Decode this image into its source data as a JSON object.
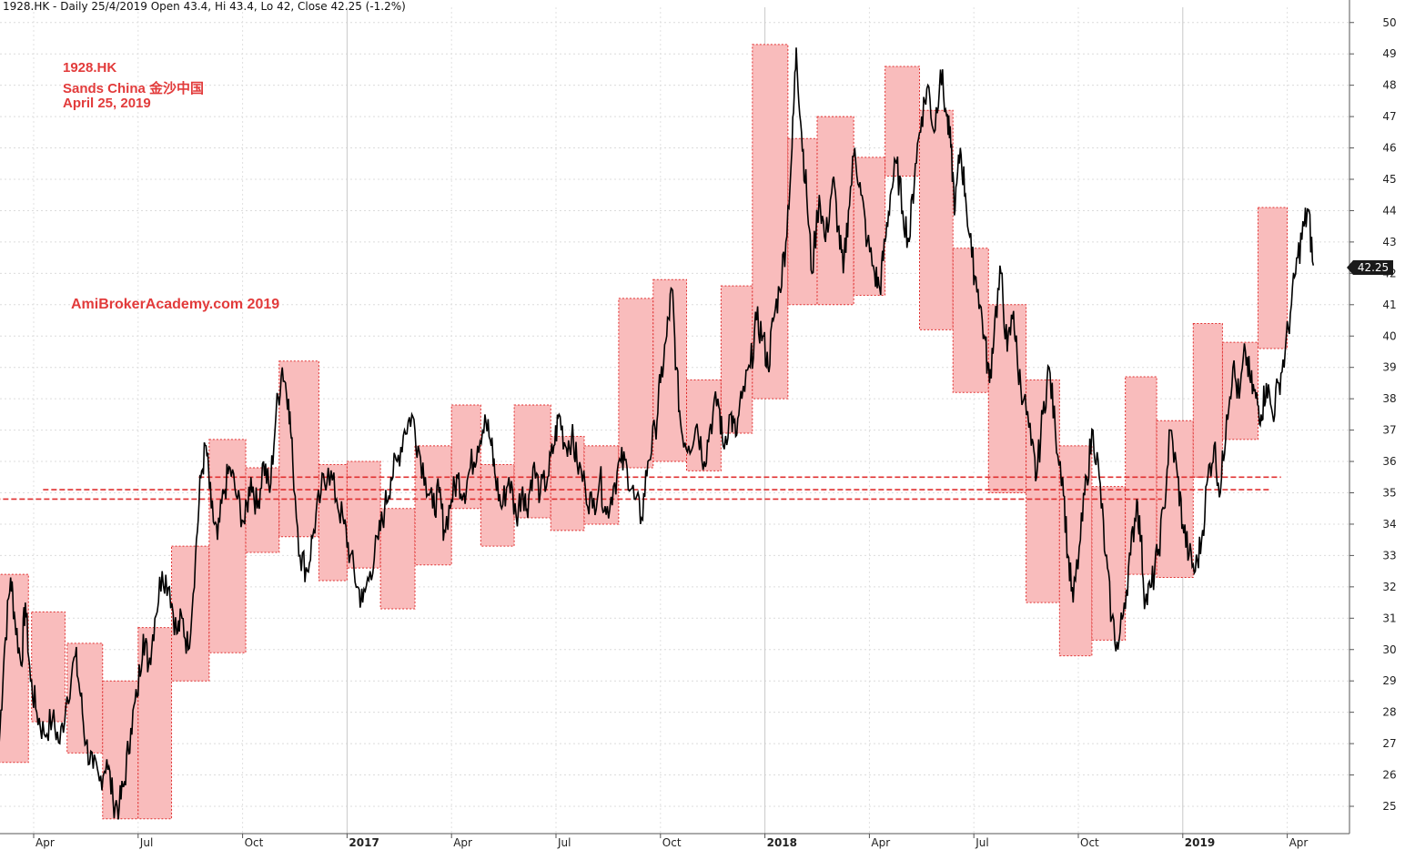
{
  "header": "1928.HK - Daily 25/4/2019 Open 43.4, Hi 43.4, Lo 42, Close 42.25 (-1.2%)",
  "annotation": {
    "ticker": "1928.HK",
    "name": "Sands China  金沙中国",
    "date": "April 25, 2019",
    "watermark": "AmiBrokerAcademy.com  2019"
  },
  "last_price_label": "42.25",
  "colors": {
    "box_fill": "#f9bcbc",
    "box_border": "#e03030",
    "line": "#e03030",
    "candle": "#000000",
    "annotation": "#e23b3b"
  },
  "chart_data": {
    "type": "line",
    "ylim": [
      24.3,
      50.4
    ],
    "y_ticks": [
      25,
      26,
      27,
      28,
      29,
      30,
      31,
      32,
      33,
      34,
      35,
      36,
      37,
      38,
      39,
      40,
      41,
      42,
      43,
      44,
      45,
      46,
      47,
      48,
      49,
      50
    ],
    "x_labels": [
      {
        "label": "Apr",
        "x": 0,
        "bold": false
      },
      {
        "label": "Jul",
        "x": 1,
        "bold": false
      },
      {
        "label": "Oct",
        "x": 2,
        "bold": false
      },
      {
        "label": "2017",
        "x": 3,
        "bold": true
      },
      {
        "label": "Apr",
        "x": 4,
        "bold": false
      },
      {
        "label": "Jul",
        "x": 5,
        "bold": false
      },
      {
        "label": "Oct",
        "x": 6,
        "bold": false
      },
      {
        "label": "2018",
        "x": 7,
        "bold": true
      },
      {
        "label": "Apr",
        "x": 8,
        "bold": false
      },
      {
        "label": "Jul",
        "x": 9,
        "bold": false
      },
      {
        "label": "Oct",
        "x": 10,
        "bold": false
      },
      {
        "label": "2019",
        "x": 11,
        "bold": true
      },
      {
        "label": "Apr",
        "x": 12,
        "bold": false
      }
    ],
    "price_path": [
      [
        -0.33,
        27.0
      ],
      [
        -0.28,
        30.0
      ],
      [
        -0.22,
        32.3
      ],
      [
        -0.18,
        31.0
      ],
      [
        -0.12,
        29.5
      ],
      [
        -0.08,
        31.5
      ],
      [
        -0.03,
        29.0
      ],
      [
        0.03,
        28.0
      ],
      [
        0.1,
        27.3
      ],
      [
        0.18,
        27.8
      ],
      [
        0.25,
        27.0
      ],
      [
        0.32,
        28.5
      ],
      [
        0.4,
        29.8
      ],
      [
        0.45,
        28.5
      ],
      [
        0.5,
        27.0
      ],
      [
        0.57,
        26.2
      ],
      [
        0.63,
        25.8
      ],
      [
        0.7,
        26.5
      ],
      [
        0.76,
        25.2
      ],
      [
        0.82,
        25.0
      ],
      [
        0.87,
        25.8
      ],
      [
        0.93,
        27.5
      ],
      [
        0.99,
        28.5
      ],
      [
        1.05,
        30.5
      ],
      [
        1.1,
        29.5
      ],
      [
        1.16,
        31.0
      ],
      [
        1.23,
        32.5
      ],
      [
        1.3,
        32.0
      ],
      [
        1.37,
        30.5
      ],
      [
        1.42,
        31.0
      ],
      [
        1.48,
        30.0
      ],
      [
        1.55,
        33.0
      ],
      [
        1.6,
        35.5
      ],
      [
        1.65,
        36.5
      ],
      [
        1.7,
        34.5
      ],
      [
        1.76,
        33.5
      ],
      [
        1.82,
        35.0
      ],
      [
        1.88,
        35.8
      ],
      [
        1.95,
        34.8
      ],
      [
        2.02,
        34.0
      ],
      [
        2.08,
        35.5
      ],
      [
        2.14,
        34.5
      ],
      [
        2.2,
        36.0
      ],
      [
        2.26,
        35.0
      ],
      [
        2.32,
        37.5
      ],
      [
        2.38,
        39.0
      ],
      [
        2.44,
        38.0
      ],
      [
        2.48,
        36.0
      ],
      [
        2.55,
        33.0
      ],
      [
        2.62,
        32.5
      ],
      [
        2.68,
        33.8
      ],
      [
        2.75,
        35.0
      ],
      [
        2.82,
        35.8
      ],
      [
        2.9,
        34.8
      ],
      [
        2.97,
        34.0
      ],
      [
        3.03,
        33.0
      ],
      [
        3.1,
        32.0
      ],
      [
        3.15,
        31.5
      ],
      [
        3.22,
        32.5
      ],
      [
        3.3,
        33.5
      ],
      [
        3.36,
        34.5
      ],
      [
        3.42,
        35.5
      ],
      [
        3.48,
        36.0
      ],
      [
        3.55,
        37.0
      ],
      [
        3.62,
        37.5
      ],
      [
        3.68,
        36.5
      ],
      [
        3.75,
        35.5
      ],
      [
        3.82,
        34.5
      ],
      [
        3.88,
        35.0
      ],
      [
        3.93,
        33.8
      ],
      [
        4.0,
        34.8
      ],
      [
        4.06,
        35.5
      ],
      [
        4.12,
        35.0
      ],
      [
        4.18,
        35.8
      ],
      [
        4.25,
        36.5
      ],
      [
        4.32,
        37.5
      ],
      [
        4.38,
        36.5
      ],
      [
        4.42,
        35.5
      ],
      [
        4.48,
        34.5
      ],
      [
        4.55,
        35.5
      ],
      [
        4.62,
        34.2
      ],
      [
        4.68,
        35.2
      ],
      [
        4.72,
        34.5
      ],
      [
        4.78,
        35.8
      ],
      [
        4.85,
        35.0
      ],
      [
        4.92,
        35.5
      ],
      [
        4.98,
        36.5
      ],
      [
        5.03,
        37.5
      ],
      [
        5.09,
        36.5
      ],
      [
        5.15,
        36.8
      ],
      [
        5.2,
        36.0
      ],
      [
        5.28,
        35.2
      ],
      [
        5.35,
        34.5
      ],
      [
        5.42,
        35.5
      ],
      [
        5.48,
        34.3
      ],
      [
        5.55,
        35.2
      ],
      [
        5.62,
        36.0
      ],
      [
        5.68,
        35.8
      ],
      [
        5.75,
        34.8
      ],
      [
        5.82,
        34.2
      ],
      [
        5.88,
        36.0
      ],
      [
        5.95,
        37.0
      ],
      [
        6.0,
        38.5
      ],
      [
        6.06,
        40.0
      ],
      [
        6.11,
        41.5
      ],
      [
        6.15,
        39.0
      ],
      [
        6.2,
        37.0
      ],
      [
        6.27,
        36.5
      ],
      [
        6.35,
        37.2
      ],
      [
        6.42,
        36.0
      ],
      [
        6.48,
        37.2
      ],
      [
        6.55,
        38.0
      ],
      [
        6.6,
        36.5
      ],
      [
        6.67,
        37.5
      ],
      [
        6.72,
        36.8
      ],
      [
        6.78,
        38.0
      ],
      [
        6.86,
        39.0
      ],
      [
        6.92,
        40.5
      ],
      [
        6.98,
        40.0
      ],
      [
        7.03,
        39.0
      ],
      [
        7.08,
        40.5
      ],
      [
        7.14,
        41.5
      ],
      [
        7.2,
        43.0
      ],
      [
        7.26,
        46.0
      ],
      [
        7.3,
        49.2
      ],
      [
        7.35,
        46.5
      ],
      [
        7.4,
        44.5
      ],
      [
        7.45,
        42.0
      ],
      [
        7.52,
        44.5
      ],
      [
        7.58,
        43.0
      ],
      [
        7.65,
        45.0
      ],
      [
        7.7,
        43.5
      ],
      [
        7.75,
        42.0
      ],
      [
        7.8,
        44.0
      ],
      [
        7.86,
        46.0
      ],
      [
        7.92,
        44.5
      ],
      [
        7.98,
        43.0
      ],
      [
        8.05,
        42.0
      ],
      [
        8.1,
        41.5
      ],
      [
        8.15,
        43.0
      ],
      [
        8.2,
        44.5
      ],
      [
        8.26,
        45.5
      ],
      [
        8.32,
        44.0
      ],
      [
        8.38,
        43.0
      ],
      [
        8.44,
        45.5
      ],
      [
        8.5,
        47.0
      ],
      [
        8.56,
        48.0
      ],
      [
        8.62,
        46.5
      ],
      [
        8.68,
        48.5
      ],
      [
        8.74,
        47.0
      ],
      [
        8.78,
        46.0
      ],
      [
        8.82,
        44.0
      ],
      [
        8.87,
        46.0
      ],
      [
        8.92,
        44.5
      ],
      [
        8.98,
        42.5
      ],
      [
        9.04,
        41.5
      ],
      [
        9.1,
        40.0
      ],
      [
        9.15,
        38.5
      ],
      [
        9.2,
        40.5
      ],
      [
        9.26,
        42.0
      ],
      [
        9.32,
        39.5
      ],
      [
        9.38,
        40.8
      ],
      [
        9.42,
        39.0
      ],
      [
        9.48,
        38.0
      ],
      [
        9.55,
        36.5
      ],
      [
        9.6,
        35.5
      ],
      [
        9.66,
        37.5
      ],
      [
        9.72,
        39.0
      ],
      [
        9.78,
        37.0
      ],
      [
        9.85,
        35.5
      ],
      [
        9.9,
        33.0
      ],
      [
        9.95,
        31.5
      ],
      [
        10.02,
        33.5
      ],
      [
        10.08,
        35.5
      ],
      [
        10.14,
        37.0
      ],
      [
        10.2,
        35.5
      ],
      [
        10.26,
        33.0
      ],
      [
        10.32,
        31.0
      ],
      [
        10.38,
        30.0
      ],
      [
        10.44,
        31.5
      ],
      [
        10.5,
        33.0
      ],
      [
        10.56,
        34.8
      ],
      [
        10.6,
        33.5
      ],
      [
        10.64,
        31.5
      ],
      [
        10.7,
        32.0
      ],
      [
        10.76,
        33.0
      ],
      [
        10.82,
        34.5
      ],
      [
        10.88,
        37.0
      ],
      [
        10.95,
        35.5
      ],
      [
        11.0,
        34.0
      ],
      [
        11.06,
        33.0
      ],
      [
        11.12,
        32.5
      ],
      [
        11.18,
        33.5
      ],
      [
        11.24,
        35.5
      ],
      [
        11.3,
        36.5
      ],
      [
        11.36,
        35.0
      ],
      [
        11.42,
        37.5
      ],
      [
        11.48,
        39.0
      ],
      [
        11.54,
        38.0
      ],
      [
        11.6,
        39.5
      ],
      [
        11.65,
        38.5
      ],
      [
        11.7,
        38.0
      ],
      [
        11.75,
        37.5
      ],
      [
        11.8,
        38.5
      ],
      [
        11.86,
        37.5
      ],
      [
        11.92,
        38.5
      ],
      [
        11.98,
        39.5
      ],
      [
        12.04,
        41.0
      ],
      [
        12.1,
        42.5
      ],
      [
        12.16,
        43.5
      ],
      [
        12.2,
        44.0
      ],
      [
        12.25,
        42.25
      ]
    ],
    "boxes": [
      [
        -0.35,
        -0.05,
        26.4,
        32.4
      ],
      [
        -0.02,
        0.3,
        27.7,
        31.2
      ],
      [
        0.32,
        0.66,
        26.7,
        30.2
      ],
      [
        0.66,
        1.0,
        24.6,
        29.0
      ],
      [
        1.0,
        1.32,
        24.6,
        30.7
      ],
      [
        1.32,
        1.68,
        29.0,
        33.3
      ],
      [
        1.68,
        2.03,
        29.9,
        36.7
      ],
      [
        2.03,
        2.35,
        33.1,
        35.8
      ],
      [
        2.35,
        2.73,
        33.6,
        39.2
      ],
      [
        2.73,
        3.0,
        32.2,
        35.9
      ],
      [
        3.0,
        3.32,
        32.6,
        36.0
      ],
      [
        3.32,
        3.65,
        31.3,
        34.5
      ],
      [
        3.65,
        4.0,
        32.7,
        36.5
      ],
      [
        4.0,
        4.28,
        34.5,
        37.8
      ],
      [
        4.28,
        4.6,
        33.3,
        35.9
      ],
      [
        4.6,
        4.95,
        34.2,
        37.8
      ],
      [
        4.95,
        5.27,
        33.8,
        36.8
      ],
      [
        5.27,
        5.6,
        34.0,
        36.5
      ],
      [
        5.6,
        5.93,
        35.8,
        41.2
      ],
      [
        5.93,
        6.25,
        36.0,
        41.8
      ],
      [
        6.25,
        6.58,
        35.7,
        38.6
      ],
      [
        6.58,
        6.88,
        36.9,
        41.6
      ],
      [
        6.88,
        7.22,
        38.0,
        49.3
      ],
      [
        7.22,
        7.5,
        41.0,
        46.3
      ],
      [
        7.5,
        7.85,
        41.0,
        47.0
      ],
      [
        7.85,
        8.15,
        41.3,
        45.7
      ],
      [
        8.15,
        8.48,
        45.1,
        48.6
      ],
      [
        8.48,
        8.8,
        40.2,
        47.2
      ],
      [
        8.8,
        9.14,
        38.2,
        42.8
      ],
      [
        9.14,
        9.5,
        35.0,
        41.0
      ],
      [
        9.5,
        9.82,
        31.5,
        38.6
      ],
      [
        9.82,
        10.13,
        29.8,
        36.5
      ],
      [
        10.13,
        10.45,
        30.3,
        35.2
      ],
      [
        10.45,
        10.75,
        32.4,
        38.7
      ],
      [
        10.75,
        11.1,
        32.3,
        37.3
      ],
      [
        11.1,
        11.38,
        35.5,
        40.4
      ],
      [
        11.38,
        11.72,
        36.7,
        39.8
      ],
      [
        11.72,
        12.0,
        39.6,
        44.1
      ]
    ],
    "support_lines": [
      {
        "y": 34.8,
        "x_start": -0.45,
        "x_end": 10.8
      },
      {
        "y": 35.1,
        "x_start": 0.09,
        "x_end": 11.85
      },
      {
        "y": 35.5,
        "x_start": 1.58,
        "x_end": 11.94
      }
    ],
    "last_price": 42.25
  }
}
